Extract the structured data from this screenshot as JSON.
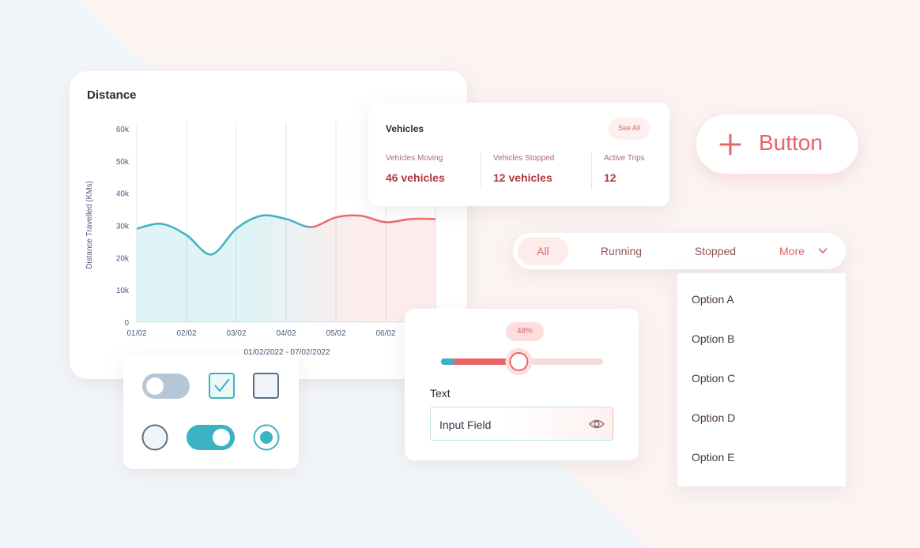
{
  "distance_card": {
    "title": "Distance",
    "chart": {
      "type": "line",
      "y_label": "Distance Travelled (KMs)",
      "x_label": "01/02/2022 - 07/02/2022",
      "categories": [
        "01/02",
        null,
        "02/02",
        null,
        "03/02",
        null,
        "04/02",
        null,
        "05/02",
        null,
        "06/02",
        null,
        null
      ],
      "values": [
        29000,
        30500,
        27000,
        21000,
        29000,
        33000,
        32000,
        29500,
        32500,
        33000,
        31000,
        32000,
        32000
      ],
      "colors": [
        "#3bb3c3",
        "#ee6a6a"
      ],
      "ylim": [
        0,
        60000
      ],
      "yticks": [
        0,
        {
          "value": 10000,
          "label": "10k"
        },
        {
          "value": 20000,
          "label": "20k"
        },
        {
          "value": 30000,
          "label": "30k"
        },
        {
          "value": 40000,
          "label": "40k"
        },
        {
          "value": 50000,
          "label": "50k"
        },
        {
          "value": 60000,
          "label": "60k"
        }
      ]
    }
  },
  "vehicles_card": {
    "title": "Vehicles",
    "action": "See All",
    "stats": [
      {
        "label": "Vehicles Moving",
        "value": "46 vehicles"
      },
      {
        "label": "Vehicles Stopped",
        "value": "12 vehicles"
      },
      {
        "label": "Active Trips",
        "value": "12"
      }
    ]
  },
  "button": {
    "label": "Button"
  },
  "tabs": [
    "All",
    "Running",
    "Stopped",
    "More"
  ],
  "dropdown": {
    "options": [
      "Option A",
      "Option B",
      "Option C",
      "Option D",
      "Option E"
    ]
  },
  "slider_card": {
    "slider": {
      "value": 48,
      "value_label": "48%"
    },
    "field_label": "Text",
    "input_placeholder": "Input Field"
  }
}
